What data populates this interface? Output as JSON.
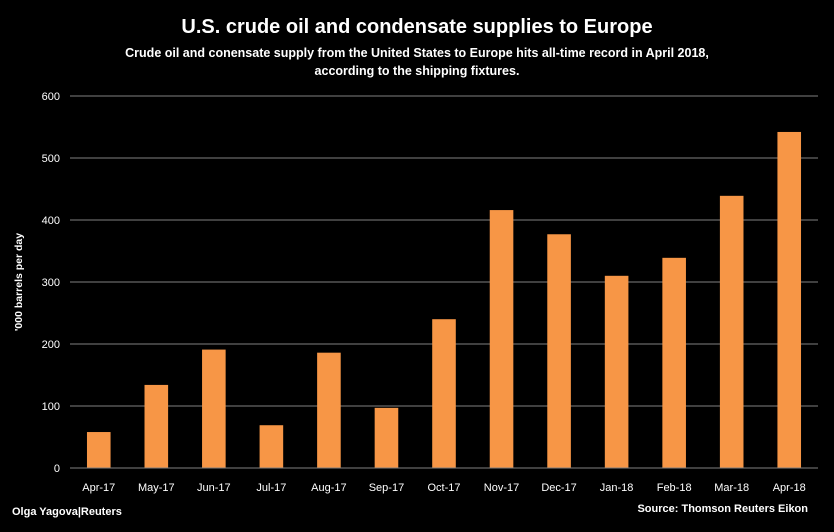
{
  "chart_data": {
    "type": "bar",
    "title": "U.S. crude oil and condensate supplies to Europe",
    "subtitle_lines": [
      "Crude oil and conensate supply from the United States to Europe hits all-time record in April 2018,",
      "according to the shipping fixtures."
    ],
    "ylabel": "'000 barrels per day",
    "xlabel": "",
    "categories": [
      "Apr-17",
      "May-17",
      "Jun-17",
      "Jul-17",
      "Aug-17",
      "Sep-17",
      "Oct-17",
      "Nov-17",
      "Dec-17",
      "Jan-18",
      "Feb-18",
      "Mar-18",
      "Apr-18"
    ],
    "values": [
      58,
      134,
      191,
      69,
      186,
      97,
      240,
      416,
      377,
      310,
      339,
      439,
      542
    ],
    "ylim": [
      0,
      600
    ],
    "yticks": [
      0,
      100,
      200,
      300,
      400,
      500,
      600
    ],
    "grid": true,
    "bar_color": "#F79646",
    "grid_color": "#7f7f7f",
    "background": "#000000",
    "credit": "Olga Yagova|Reuters",
    "source": "Source: Thomson  Reuters Eikon"
  }
}
